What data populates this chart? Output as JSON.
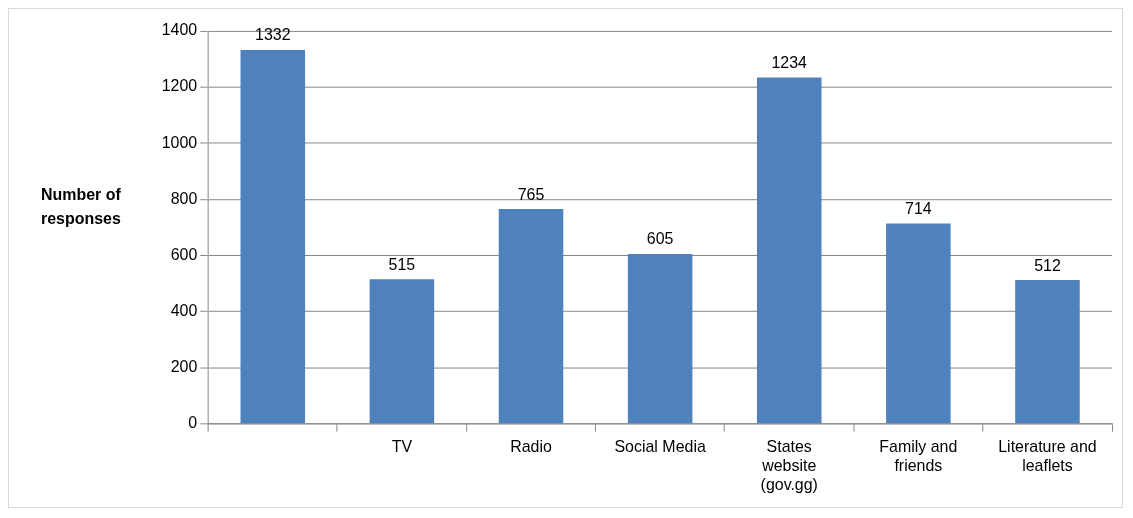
{
  "chart_data": {
    "type": "bar",
    "ylabel": "Number of responses",
    "categories": [
      null,
      "TV",
      "Radio",
      "Social Media",
      "States website (gov.gg)",
      "Family and friends",
      "Literature and leaflets"
    ],
    "values": [
      1332,
      515,
      765,
      605,
      1234,
      714,
      512
    ],
    "color": "#4f81bd",
    "ylim": [
      0,
      1400
    ],
    "yticks": [
      0,
      200,
      400,
      600,
      800,
      1000,
      1200,
      1400
    ],
    "grid": "y",
    "data_labels": true,
    "legend": false
  }
}
